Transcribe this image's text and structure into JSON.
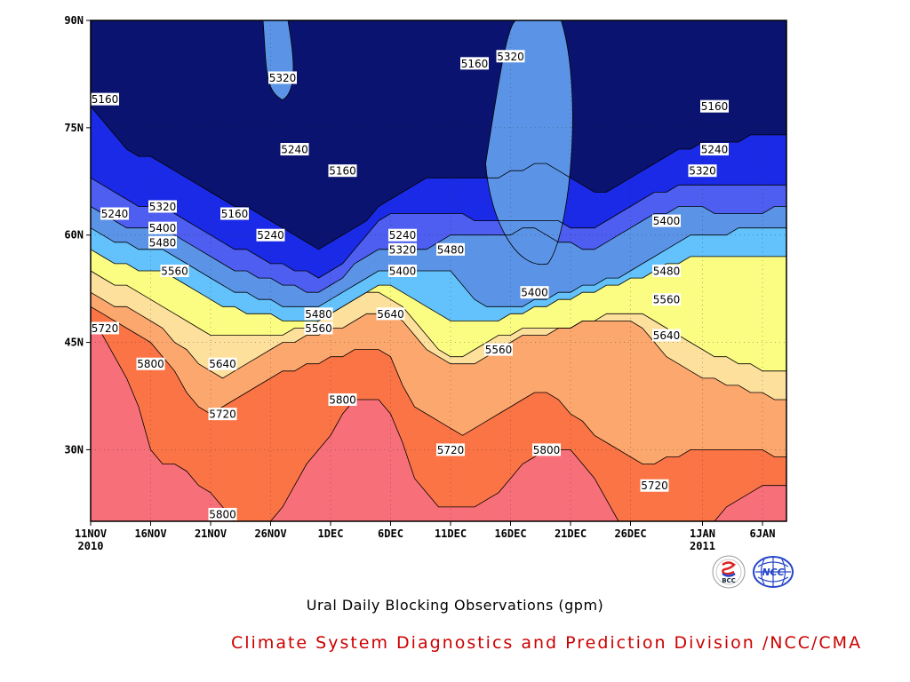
{
  "chart_data": {
    "type": "contour",
    "title": "Ural Daily Blocking Observations (gpm)",
    "units": "gpm",
    "x_axis": {
      "range": [
        "2010-11-11",
        "2011-01-08"
      ],
      "ticks": [
        {
          "label": "11NOV",
          "year": "2010",
          "day": 0
        },
        {
          "label": "16NOV",
          "year": "",
          "day": 5
        },
        {
          "label": "21NOV",
          "year": "",
          "day": 10
        },
        {
          "label": "26NOV",
          "year": "",
          "day": 15
        },
        {
          "label": "1DEC",
          "year": "",
          "day": 20
        },
        {
          "label": "6DEC",
          "year": "",
          "day": 25
        },
        {
          "label": "11DEC",
          "year": "",
          "day": 30
        },
        {
          "label": "16DEC",
          "year": "",
          "day": 35
        },
        {
          "label": "21DEC",
          "year": "",
          "day": 40
        },
        {
          "label": "26DEC",
          "year": "",
          "day": 45
        },
        {
          "label": "1JAN",
          "year": "2011",
          "day": 51
        },
        {
          "label": "6JAN",
          "year": "",
          "day": 56
        }
      ]
    },
    "y_axis": {
      "range": [
        20,
        90
      ],
      "ticks": [
        {
          "label": "30N",
          "value": 30
        },
        {
          "label": "45N",
          "value": 45
        },
        {
          "label": "60N",
          "value": 60
        },
        {
          "label": "75N",
          "value": 75
        },
        {
          "label": "90N",
          "value": 90
        }
      ]
    },
    "grid": true,
    "levels": [
      {
        "min": 0,
        "max": 5160,
        "color": "#0a1470"
      },
      {
        "min": 5160,
        "max": 5240,
        "color": "#1a2ae6"
      },
      {
        "min": 5240,
        "max": 5320,
        "color": "#4d5ef0"
      },
      {
        "min": 5320,
        "max": 5400,
        "color": "#5b94e6"
      },
      {
        "min": 5400,
        "max": 5480,
        "color": "#63c2fb"
      },
      {
        "min": 5480,
        "max": 5560,
        "color": "#fbfc82"
      },
      {
        "min": 5560,
        "max": 5640,
        "color": "#fde09c"
      },
      {
        "min": 5640,
        "max": 5720,
        "color": "#fca76d"
      },
      {
        "min": 5720,
        "max": 5800,
        "color": "#fb7446"
      },
      {
        "min": 5800,
        "max": 9999,
        "color": "#f76f79"
      }
    ],
    "contours": [
      {
        "value": 5800,
        "lat": [
          48,
          46,
          43,
          40,
          36,
          30,
          28,
          28,
          27,
          25,
          24,
          22,
          20,
          20,
          20,
          20,
          22,
          25,
          28,
          30,
          32,
          35,
          37,
          37,
          37,
          35,
          31,
          26,
          24,
          22,
          22,
          22,
          22,
          23,
          24,
          26,
          28,
          29,
          30,
          30,
          30,
          28,
          26,
          23,
          20,
          20,
          20,
          20,
          20,
          20,
          20,
          20,
          20,
          22,
          23,
          24,
          25,
          25,
          25
        ]
      },
      {
        "value": 5720,
        "lat": [
          50,
          49,
          48,
          47,
          46,
          45,
          43,
          41,
          38,
          36,
          35,
          36,
          37,
          38,
          39,
          40,
          41,
          41,
          42,
          42,
          43,
          43,
          44,
          44,
          44,
          43,
          39,
          36,
          35,
          34,
          33,
          32,
          33,
          34,
          35,
          36,
          37,
          38,
          38,
          37,
          35,
          34,
          32,
          31,
          30,
          29,
          28,
          28,
          29,
          29,
          30,
          30,
          30,
          30,
          30,
          30,
          30,
          29,
          29
        ]
      },
      {
        "value": 5640,
        "lat": [
          52,
          51,
          50,
          50,
          49,
          48,
          47,
          45,
          44,
          42,
          41,
          40,
          41,
          42,
          43,
          44,
          45,
          45,
          46,
          46,
          47,
          47,
          48,
          49,
          49,
          49,
          48,
          46,
          44,
          43,
          42,
          42,
          42,
          43,
          44,
          45,
          46,
          46,
          46,
          47,
          47,
          48,
          48,
          48,
          48,
          48,
          47,
          45,
          43,
          42,
          41,
          40,
          40,
          39,
          39,
          38,
          38,
          37,
          37
        ]
      },
      {
        "value": 5560,
        "lat": [
          55,
          54,
          53,
          53,
          52,
          51,
          50,
          49,
          48,
          47,
          46,
          46,
          46,
          46,
          46,
          46,
          46,
          47,
          47,
          48,
          49,
          50,
          51,
          52,
          52,
          51,
          50,
          48,
          46,
          44,
          43,
          43,
          44,
          45,
          46,
          46,
          47,
          47,
          47,
          47,
          47,
          48,
          48,
          49,
          49,
          49,
          49,
          48,
          47,
          46,
          45,
          44,
          43,
          43,
          42,
          42,
          41,
          41,
          41
        ]
      },
      {
        "value": 5480,
        "lat": [
          58,
          57,
          56,
          56,
          55,
          55,
          55,
          54,
          53,
          52,
          51,
          50,
          50,
          49,
          49,
          49,
          48,
          48,
          48,
          48,
          49,
          50,
          51,
          52,
          53,
          53,
          52,
          51,
          50,
          49,
          48,
          48,
          48,
          48,
          48,
          49,
          49,
          50,
          50,
          51,
          51,
          52,
          52,
          53,
          53,
          54,
          54,
          55,
          56,
          56,
          57,
          57,
          57,
          57,
          57,
          57,
          57,
          57,
          57
        ]
      },
      {
        "value": 5400,
        "lat": [
          61,
          60,
          59,
          59,
          58,
          58,
          58,
          57,
          56,
          55,
          54,
          53,
          52,
          52,
          51,
          51,
          50,
          50,
          50,
          50,
          51,
          52,
          53,
          54,
          55,
          55,
          55,
          55,
          55,
          55,
          55,
          53,
          51,
          50,
          50,
          50,
          50,
          51,
          51,
          52,
          52,
          53,
          53,
          54,
          54,
          55,
          56,
          57,
          58,
          59,
          60,
          60,
          60,
          60,
          61,
          61,
          61,
          61,
          61
        ]
      },
      {
        "value": 5320,
        "lat": [
          64,
          63,
          62,
          61,
          61,
          61,
          61,
          60,
          59,
          58,
          57,
          56,
          55,
          55,
          54,
          54,
          53,
          53,
          52,
          52,
          53,
          54,
          56,
          57,
          58,
          58,
          58,
          58,
          58,
          59,
          60,
          60,
          60,
          60,
          60,
          60,
          61,
          61,
          60,
          59,
          59,
          58,
          58,
          59,
          60,
          61,
          62,
          63,
          63,
          64,
          64,
          64,
          63,
          63,
          63,
          63,
          63,
          64,
          64
        ]
      },
      {
        "value": 5240,
        "lat": [
          68,
          67,
          66,
          65,
          64,
          64,
          64,
          63,
          62,
          61,
          60,
          59,
          58,
          58,
          57,
          56,
          56,
          55,
          55,
          54,
          55,
          56,
          58,
          60,
          62,
          63,
          63,
          63,
          63,
          63,
          63,
          63,
          62,
          62,
          62,
          62,
          62,
          62,
          62,
          62,
          61,
          61,
          61,
          62,
          63,
          64,
          65,
          66,
          66,
          67,
          67,
          67,
          67,
          67,
          67,
          67,
          67,
          67,
          67
        ]
      },
      {
        "value": 5160,
        "lat": [
          78,
          76,
          74,
          72,
          71,
          71,
          70,
          69,
          68,
          67,
          66,
          65,
          64,
          64,
          63,
          62,
          61,
          60,
          59,
          58,
          59,
          60,
          61,
          62,
          64,
          65,
          66,
          67,
          68,
          68,
          68,
          68,
          68,
          68,
          68,
          69,
          69,
          70,
          70,
          69,
          68,
          67,
          66,
          66,
          67,
          68,
          69,
          70,
          71,
          72,
          72,
          73,
          73,
          73,
          73,
          74,
          74,
          74,
          74
        ]
      }
    ],
    "highs": [
      {
        "value": 5320,
        "day": 16,
        "lat": 82,
        "shape": "tongue"
      },
      {
        "value": 5320,
        "day": 37,
        "lat": 76,
        "shape": "tongue"
      }
    ],
    "contour_labels": [
      {
        "text": "5160",
        "day": 1,
        "lat": 79
      },
      {
        "text": "5240",
        "day": 2,
        "lat": 63
      },
      {
        "text": "5320",
        "day": 6,
        "lat": 64
      },
      {
        "text": "5400",
        "day": 6,
        "lat": 61
      },
      {
        "text": "5480",
        "day": 6,
        "lat": 59
      },
      {
        "text": "5560",
        "day": 7,
        "lat": 55
      },
      {
        "text": "5720",
        "day": 0,
        "lat": 47
      },
      {
        "text": "5800",
        "day": 5,
        "lat": 42
      },
      {
        "text": "5160",
        "day": 12,
        "lat": 63
      },
      {
        "text": "5240",
        "day": 15,
        "lat": 60
      },
      {
        "text": "5320",
        "day": 16,
        "lat": 82
      },
      {
        "text": "5240",
        "day": 17,
        "lat": 72
      },
      {
        "text": "5160",
        "day": 21,
        "lat": 69
      },
      {
        "text": "5640",
        "day": 11,
        "lat": 42
      },
      {
        "text": "5720",
        "day": 11,
        "lat": 35
      },
      {
        "text": "5800",
        "day": 11,
        "lat": 21
      },
      {
        "text": "5480",
        "day": 19,
        "lat": 49
      },
      {
        "text": "5560",
        "day": 19,
        "lat": 47
      },
      {
        "text": "5800",
        "day": 21,
        "lat": 37
      },
      {
        "text": "5640",
        "day": 25,
        "lat": 49
      },
      {
        "text": "5240",
        "day": 26,
        "lat": 60
      },
      {
        "text": "5320",
        "day": 26,
        "lat": 58
      },
      {
        "text": "5400",
        "day": 26,
        "lat": 55
      },
      {
        "text": "5160",
        "day": 32,
        "lat": 84
      },
      {
        "text": "5320",
        "day": 35,
        "lat": 85
      },
      {
        "text": "5480",
        "day": 30,
        "lat": 58
      },
      {
        "text": "5560",
        "day": 34,
        "lat": 44
      },
      {
        "text": "5400",
        "day": 37,
        "lat": 52
      },
      {
        "text": "5720",
        "day": 30,
        "lat": 30
      },
      {
        "text": "5800",
        "day": 38,
        "lat": 30
      },
      {
        "text": "5720",
        "day": 47,
        "lat": 25
      },
      {
        "text": "5640",
        "day": 48,
        "lat": 46
      },
      {
        "text": "5560",
        "day": 48,
        "lat": 51
      },
      {
        "text": "5480",
        "day": 48,
        "lat": 55
      },
      {
        "text": "5400",
        "day": 48,
        "lat": 62
      },
      {
        "text": "5320",
        "day": 51,
        "lat": 69
      },
      {
        "text": "5240",
        "day": 52,
        "lat": 72
      },
      {
        "text": "5160",
        "day": 52,
        "lat": 78
      }
    ]
  },
  "footer": {
    "title": "Ural Daily Blocking Observations (gpm)",
    "credit": "Climate System Diagnostics and Prediction Division /NCC/CMA",
    "logos": {
      "left": "BCC",
      "right": "NCC"
    }
  }
}
